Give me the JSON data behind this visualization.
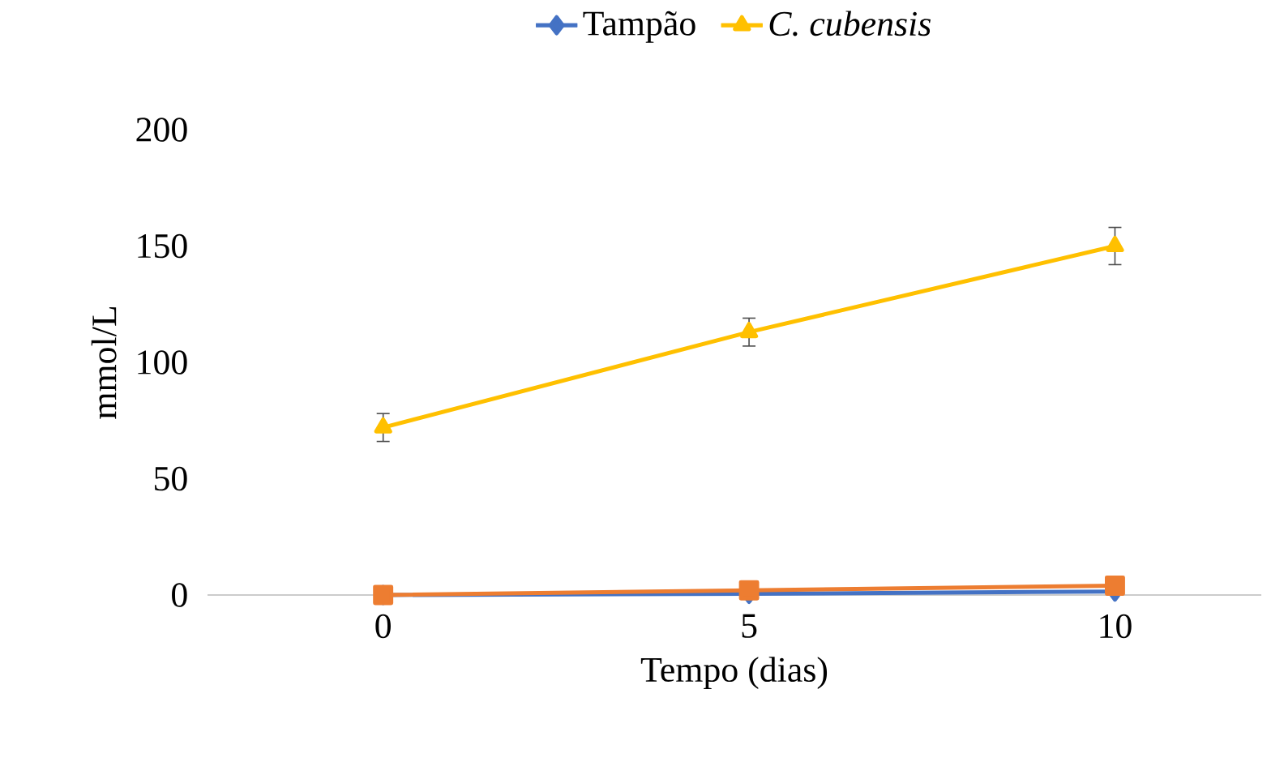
{
  "chart_data": {
    "type": "line",
    "xlabel": "Tempo (dias)",
    "ylabel": "mmol/L",
    "categories": [
      "0",
      "5",
      "10"
    ],
    "ylim": [
      0,
      200
    ],
    "yticks": [
      0,
      50,
      100,
      150,
      200
    ],
    "legend": "top",
    "grid": false,
    "series": [
      {
        "name": "Tampão",
        "color": "#4472c4",
        "marker": "diamond",
        "values": [
          0,
          0.5,
          1.5
        ]
      },
      {
        "color": "#ed7d31",
        "marker": "square",
        "values": [
          0,
          2,
          4
        ]
      },
      {
        "name": "*C. cubensis*",
        "color": "#ffc000",
        "marker": "triangle",
        "values": [
          72,
          113,
          150
        ],
        "errors": [
          6,
          6,
          8
        ]
      }
    ]
  }
}
